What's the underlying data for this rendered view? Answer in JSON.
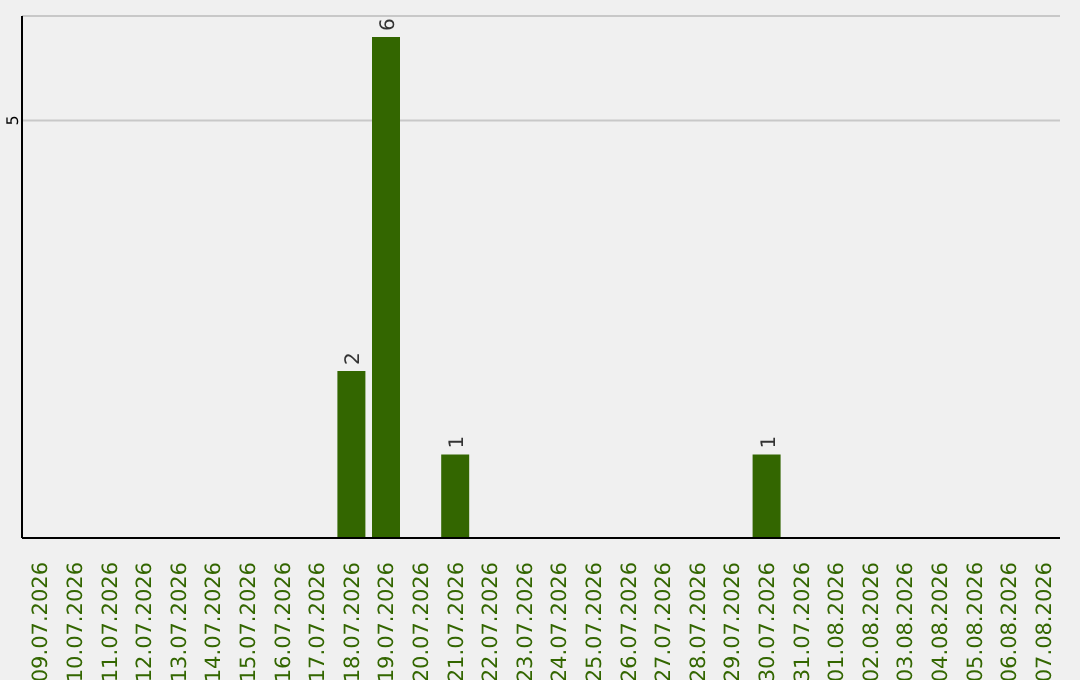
{
  "chart_data": {
    "type": "bar",
    "categories": [
      "09.07.2026",
      "10.07.2026",
      "11.07.2026",
      "12.07.2026",
      "13.07.2026",
      "14.07.2026",
      "15.07.2026",
      "16.07.2026",
      "17.07.2026",
      "18.07.2026",
      "19.07.2026",
      "20.07.2026",
      "21.07.2026",
      "22.07.2026",
      "23.07.2026",
      "24.07.2026",
      "25.07.2026",
      "26.07.2026",
      "27.07.2026",
      "28.07.2026",
      "29.07.2026",
      "30.07.2026",
      "31.07.2026",
      "01.08.2026",
      "02.08.2026",
      "03.08.2026",
      "04.08.2026",
      "05.08.2026",
      "06.08.2026",
      "07.08.2026"
    ],
    "values": [
      0,
      0,
      0,
      0,
      0,
      0,
      0,
      0,
      0,
      2,
      6,
      0,
      1,
      0,
      0,
      0,
      0,
      0,
      0,
      0,
      0,
      1,
      0,
      0,
      0,
      0,
      0,
      0,
      0,
      0
    ],
    "value_labels": [
      null,
      null,
      null,
      null,
      null,
      null,
      null,
      null,
      null,
      "2",
      "6",
      null,
      "1",
      null,
      null,
      null,
      null,
      null,
      null,
      null,
      null,
      "1",
      null,
      null,
      null,
      null,
      null,
      null,
      null,
      null
    ],
    "color": "#336600",
    "ylim": [
      0,
      6.25
    ],
    "yticks": [
      5
    ],
    "grid": "y"
  }
}
